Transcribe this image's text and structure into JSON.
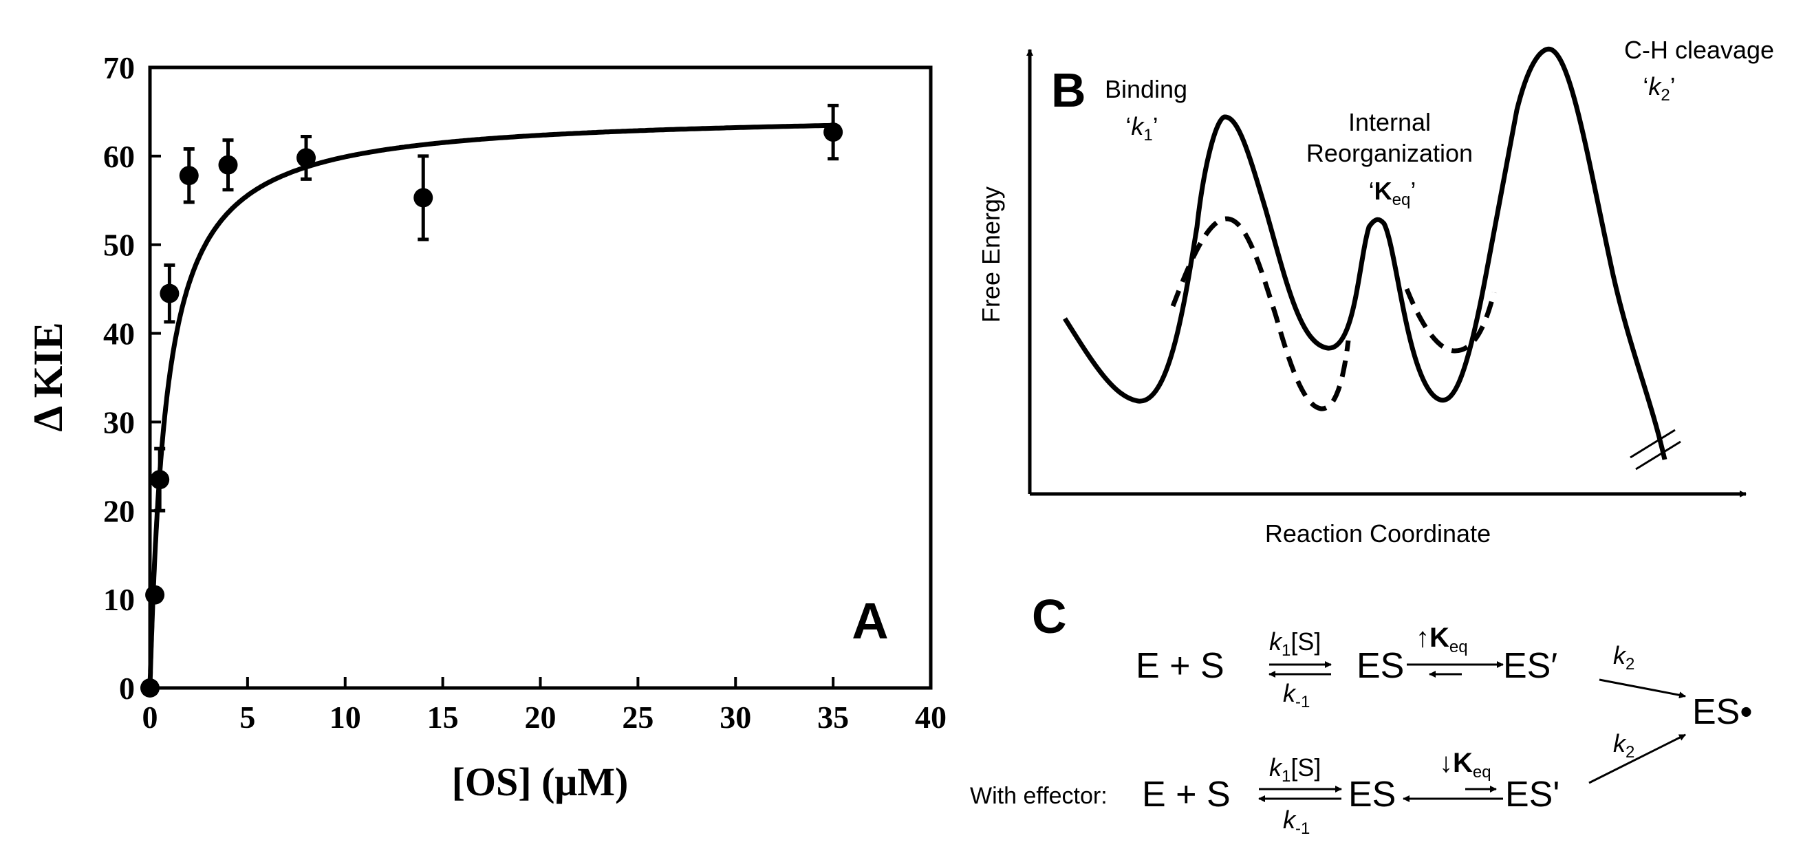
{
  "panel_a": {
    "letter": "A",
    "chart_data": {
      "type": "scatter",
      "xlabel": "[OS] (μM)",
      "ylabel": "Δ KIE",
      "xlim": [
        0,
        40
      ],
      "ylim": [
        0,
        70
      ],
      "xticks": [
        0,
        5,
        10,
        15,
        20,
        25,
        30,
        35,
        40
      ],
      "yticks": [
        0,
        10,
        20,
        30,
        40,
        50,
        60,
        70
      ],
      "points": [
        {
          "x": 0.0,
          "y": 0.0,
          "err": 0
        },
        {
          "x": 0.25,
          "y": 10.5,
          "err": 0
        },
        {
          "x": 0.5,
          "y": 23.5,
          "err": 3.5
        },
        {
          "x": 1.0,
          "y": 44.5,
          "err": 3.2
        },
        {
          "x": 2.0,
          "y": 57.8,
          "err": 3.0
        },
        {
          "x": 4.0,
          "y": 59.0,
          "err": 2.8
        },
        {
          "x": 8.0,
          "y": 59.8,
          "err": 2.4
        },
        {
          "x": 14.0,
          "y": 55.3,
          "err": 4.7
        },
        {
          "x": 35.0,
          "y": 62.7,
          "err": 3.0
        }
      ],
      "fit": {
        "model": "hyperbolic",
        "vmax": 65.0,
        "kd": 0.85
      }
    }
  },
  "panel_b": {
    "letter": "B",
    "ylabel": "Free Energy",
    "xlabel": "Reaction Coordinate",
    "binding_label": "Binding",
    "k1_open": "‘",
    "k1_symbol": "k",
    "k1_sub": "1",
    "k1_close": "’",
    "internal_label": "Internal",
    "reorg_label": "Reorganization",
    "keq_open": "‘",
    "keq_symbol": "K",
    "keq_sub": "eq",
    "keq_close": "’",
    "cleavage_label": "C-H cleavage",
    "k2_open": "‘",
    "k2_symbol": "k",
    "k2_sub": "2",
    "k2_close": "’"
  },
  "panel_c": {
    "letter": "C",
    "e_plus_s": "E + S",
    "es": "ES",
    "es_prime": "ES′",
    "es_radical": "ES•",
    "k_symbol": "k",
    "k1_sub": "1",
    "s_bracket": "[S]",
    "km1_sub": "-1",
    "k2_sub": "2",
    "keq_symbol": "K",
    "keq_sub": "eq",
    "up_arrow": "↑",
    "down_arrow": "↓",
    "effector_label": "With effector:",
    "es_prime_2": "ES'"
  }
}
